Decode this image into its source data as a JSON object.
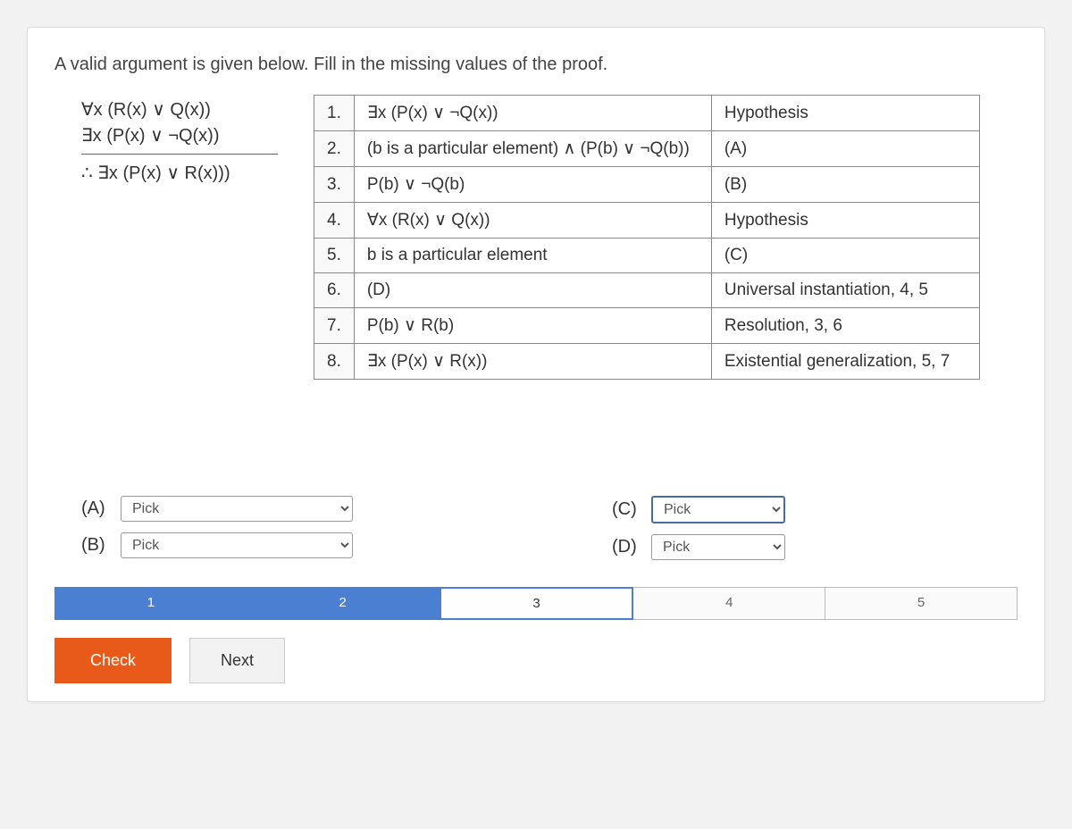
{
  "prompt": "A valid argument is given below. Fill in the missing values of the proof.",
  "argument": {
    "premise1": "∀x (R(x) ∨ Q(x))",
    "premise2": "∃x (P(x) ∨ ¬Q(x))",
    "conclusion": "∴ ∃x (P(x) ∨ R(x)))"
  },
  "proof": [
    {
      "num": "1.",
      "step": "∃x (P(x) ∨ ¬Q(x))",
      "reason": "Hypothesis"
    },
    {
      "num": "2.",
      "step": "(b is a particular element) ∧ (P(b) ∨ ¬Q(b))",
      "reason": "(A)"
    },
    {
      "num": "3.",
      "step": "P(b) ∨ ¬Q(b)",
      "reason": "(B)"
    },
    {
      "num": "4.",
      "step": "∀x (R(x) ∨ Q(x))",
      "reason": "Hypothesis"
    },
    {
      "num": "5.",
      "step": "b is a particular element",
      "reason": "(C)"
    },
    {
      "num": "6.",
      "step": "(D)",
      "reason": "Universal instantiation, 4, 5"
    },
    {
      "num": "7.",
      "step": "P(b) ∨ R(b)",
      "reason": "Resolution, 3, 6"
    },
    {
      "num": "8.",
      "step": "∃x (P(x) ∨ R(x))",
      "reason": "Existential generalization, 5, 7"
    }
  ],
  "answers": {
    "A": {
      "label": "(A)",
      "placeholder": "Pick"
    },
    "B": {
      "label": "(B)",
      "placeholder": "Pick"
    },
    "C": {
      "label": "(C)",
      "placeholder": "Pick"
    },
    "D": {
      "label": "(D)",
      "placeholder": "Pick"
    }
  },
  "progress": {
    "segments": [
      "1",
      "2",
      "3",
      "4",
      "5"
    ],
    "done": [
      1,
      2
    ],
    "current": 3
  },
  "buttons": {
    "check": "Check",
    "next": "Next"
  },
  "colors": {
    "card_bg": "#ffffff",
    "page_bg": "#f2f2f2",
    "border": "#888888",
    "text": "#333333",
    "progress_done": "#4a7fd1",
    "progress_current_border": "#4a7fd1",
    "check_btn": "#e85a1a",
    "next_btn": "#f2f2f2",
    "select_focus": "#4a6aa5"
  }
}
